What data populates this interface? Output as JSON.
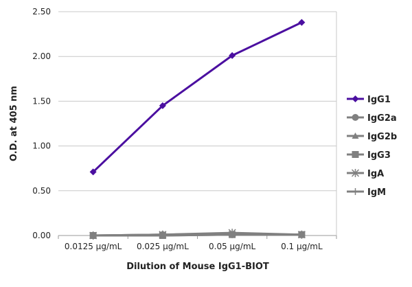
{
  "chart_data": {
    "type": "line",
    "title": "",
    "xlabel": "Dilution of Mouse IgG1-BIOT",
    "ylabel": "O.D. at 405 nm",
    "categories": [
      "0.0125 µg/mL",
      "0.025 µg/mL",
      "0.05 µg/mL",
      "0.1 µg/mL"
    ],
    "ylim": [
      0,
      2.5
    ],
    "yticks": [
      "0.00",
      "0.50",
      "1.00",
      "1.50",
      "2.00",
      "2.50"
    ],
    "grid": true,
    "legend_position": "right",
    "series": [
      {
        "name": "IgG1",
        "values": [
          0.71,
          1.45,
          2.01,
          2.38
        ],
        "color": "#4b0fa0",
        "marker": "diamond"
      },
      {
        "name": "IgG2a",
        "values": [
          0.0,
          0.01,
          0.01,
          0.01
        ],
        "color": "#808080",
        "marker": "circle"
      },
      {
        "name": "IgG2b",
        "values": [
          0.0,
          0.01,
          0.02,
          0.01
        ],
        "color": "#808080",
        "marker": "triangle"
      },
      {
        "name": "IgG3",
        "values": [
          0.0,
          0.0,
          0.01,
          0.01
        ],
        "color": "#808080",
        "marker": "square"
      },
      {
        "name": "IgA",
        "values": [
          0.0,
          0.01,
          0.03,
          0.01
        ],
        "color": "#808080",
        "marker": "star"
      },
      {
        "name": "IgM",
        "values": [
          0.0,
          0.0,
          0.01,
          0.01
        ],
        "color": "#808080",
        "marker": "plus"
      }
    ]
  }
}
